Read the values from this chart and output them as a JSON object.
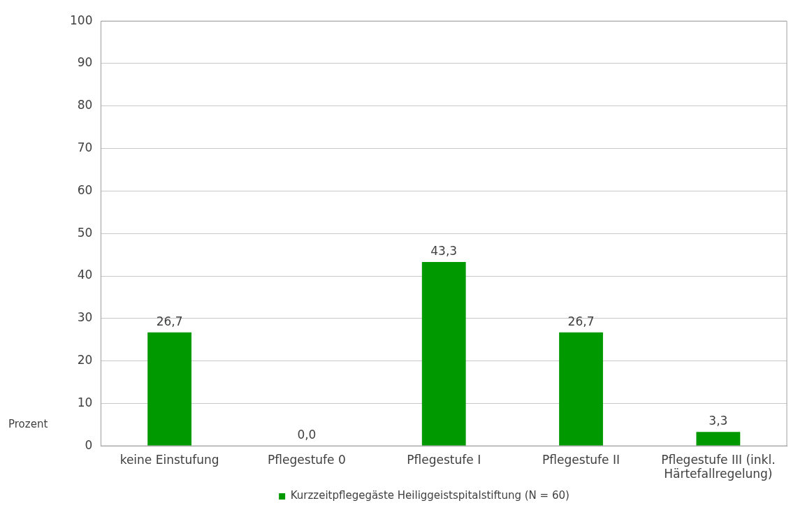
{
  "chart_data": {
    "type": "bar",
    "ylabel": "Prozent",
    "categories": [
      "keine Einstufung",
      "Pflegestufe 0",
      "Pflegestufe I",
      "Pflegestufe II",
      "Pflegestufe III (inkl. Härtefallregelung)"
    ],
    "series": [
      {
        "name": "Kurzzeitpflegegäste Heiliggeistspitalstiftung (N = 60)",
        "color": "#009900",
        "values": [
          26.7,
          0.0,
          43.3,
          26.7,
          3.3
        ],
        "value_labels": [
          "26,7",
          "0,0",
          "43,3",
          "26,7",
          "3,3"
        ]
      }
    ],
    "ylim": [
      0,
      100
    ],
    "yticks": [
      0,
      10,
      20,
      30,
      40,
      50,
      60,
      70,
      80,
      90,
      100
    ],
    "grid": "y",
    "legend": "bottom"
  }
}
